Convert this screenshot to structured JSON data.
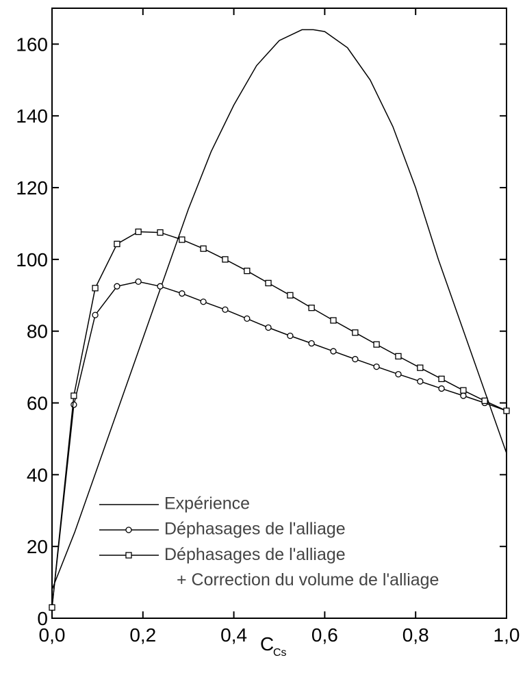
{
  "chart_data": {
    "type": "line",
    "x_label": {
      "main": "C",
      "sub": "Cs"
    },
    "xlim": [
      0,
      1
    ],
    "ylim": [
      0,
      170
    ],
    "xticks": [
      {
        "value": 0,
        "label": "0,0"
      },
      {
        "value": 0.2,
        "label": "0,2"
      },
      {
        "value": 0.4,
        "label": "0,4"
      },
      {
        "value": 0.6,
        "label": "0,6"
      },
      {
        "value": 0.8,
        "label": "0,8"
      },
      {
        "value": 1,
        "label": "1,0"
      }
    ],
    "yticks": [
      0,
      20,
      40,
      60,
      80,
      100,
      120,
      140,
      160
    ],
    "grid": false,
    "legend": "lower-left",
    "series": [
      {
        "name": "Expérience",
        "color": "#000000",
        "marker": "none",
        "x": [
          0,
          0.05,
          0.1,
          0.15,
          0.2,
          0.25,
          0.3,
          0.35,
          0.4,
          0.45,
          0.5,
          0.55,
          0.575,
          0.6,
          0.65,
          0.7,
          0.75,
          0.8,
          0.85,
          0.9,
          0.95,
          1.0
        ],
        "values": [
          8,
          24,
          42,
          60,
          78,
          96,
          114,
          130,
          143,
          154,
          161,
          164,
          164,
          163.5,
          159,
          150,
          137,
          120,
          100,
          82,
          64,
          46
        ]
      },
      {
        "name": "Déphasages de l'alliage",
        "color": "#000000",
        "marker": "circle",
        "x": [
          0,
          0.048,
          0.095,
          0.143,
          0.19,
          0.238,
          0.286,
          0.333,
          0.381,
          0.429,
          0.476,
          0.524,
          0.571,
          0.619,
          0.667,
          0.714,
          0.762,
          0.81,
          0.857,
          0.905,
          0.952,
          1.0
        ],
        "values": [
          3,
          59.5,
          84.5,
          92.5,
          93.8,
          92.5,
          90.5,
          88.2,
          86,
          83.5,
          81,
          78.7,
          76.6,
          74.4,
          72.2,
          70.1,
          68,
          66,
          64,
          62,
          60,
          57.8
        ]
      },
      {
        "name": "Déphasages de l'alliage + Correction du volume de l'alliage",
        "color": "#000000",
        "marker": "square",
        "x": [
          0,
          0.048,
          0.095,
          0.143,
          0.19,
          0.238,
          0.286,
          0.333,
          0.381,
          0.429,
          0.476,
          0.524,
          0.571,
          0.619,
          0.667,
          0.714,
          0.762,
          0.81,
          0.857,
          0.905,
          0.952,
          1.0
        ],
        "values": [
          3,
          62,
          92,
          104.3,
          107.7,
          107.5,
          105.5,
          103,
          100,
          96.8,
          93.4,
          90,
          86.5,
          83,
          79.6,
          76.3,
          73,
          69.8,
          66.7,
          63.5,
          60.6,
          57.8
        ]
      }
    ]
  }
}
